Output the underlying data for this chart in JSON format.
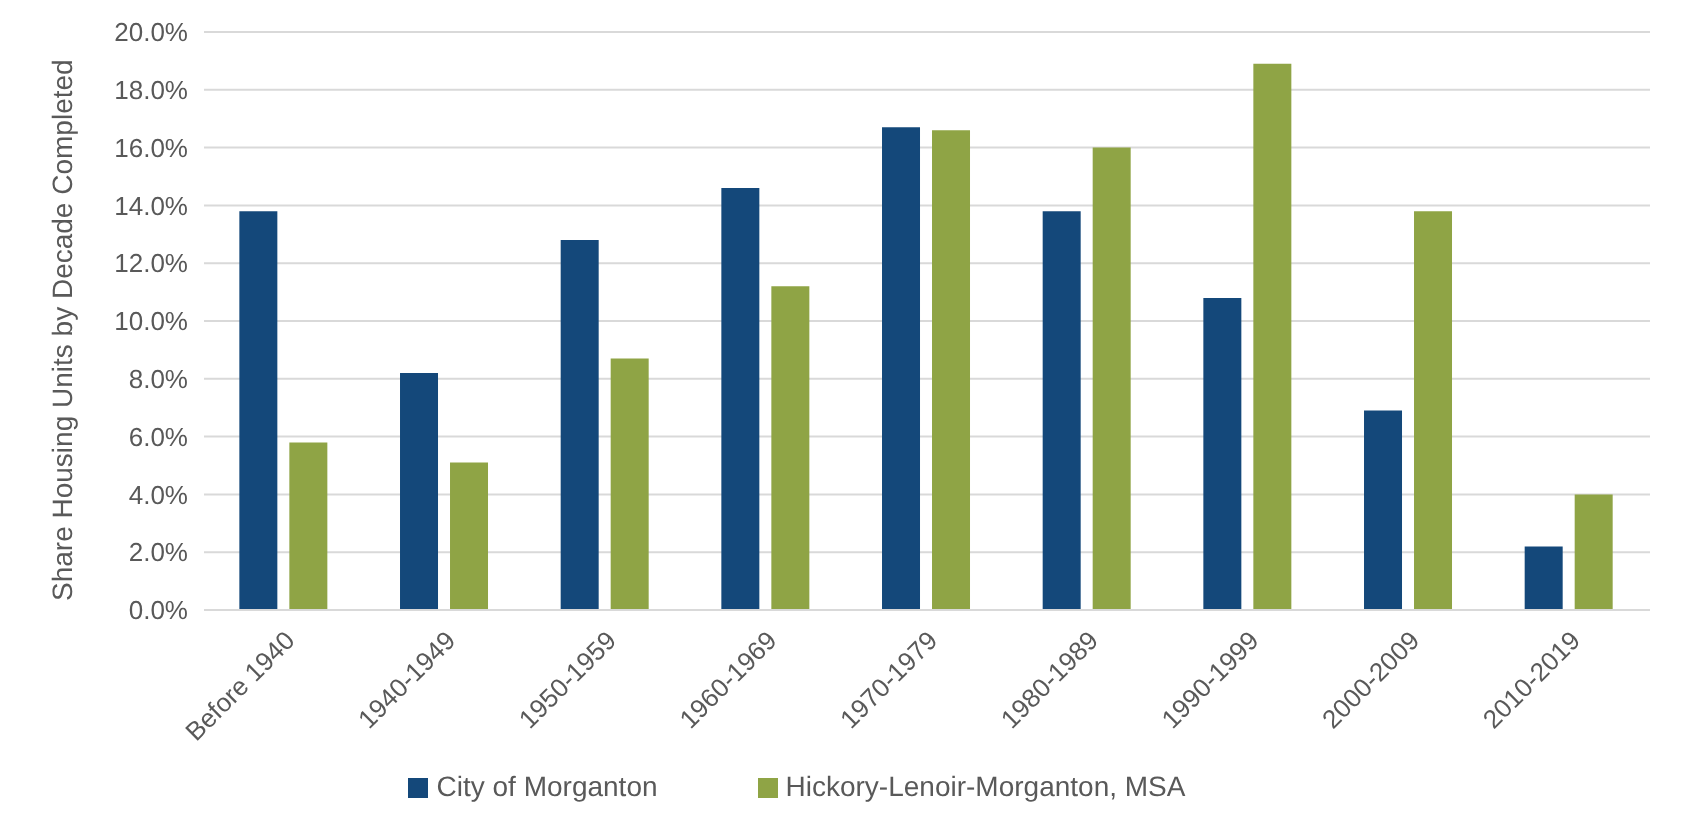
{
  "chart_data": {
    "type": "bar",
    "ylabel": "Share Housing Units by Decade Completed",
    "categories": [
      "Before 1940",
      "1940-1949",
      "1950-1959",
      "1960-1969",
      "1970-1979",
      "1980-1989",
      "1990-1999",
      "2000-2009",
      "2010-2019"
    ],
    "series": [
      {
        "name": "City of Morganton",
        "color": "#14487a",
        "values": [
          13.8,
          8.2,
          12.8,
          14.6,
          16.7,
          13.8,
          10.8,
          6.9,
          2.2
        ]
      },
      {
        "name": "Hickory-Lenoir-Morganton, MSA",
        "color": "#8fa445",
        "values": [
          5.8,
          5.1,
          8.7,
          11.2,
          16.6,
          16.0,
          18.9,
          13.8,
          4.0
        ]
      }
    ],
    "ylim": [
      0,
      20
    ],
    "yticks": [
      {
        "value": 0,
        "label": "0.0%"
      },
      {
        "value": 2,
        "label": "2.0%"
      },
      {
        "value": 4,
        "label": "4.0%"
      },
      {
        "value": 6,
        "label": "6.0%"
      },
      {
        "value": 8,
        "label": "8.0%"
      },
      {
        "value": 10,
        "label": "10.0%"
      },
      {
        "value": 12,
        "label": "12.0%"
      },
      {
        "value": 14,
        "label": "14.0%"
      },
      {
        "value": 16,
        "label": "16.0%"
      },
      {
        "value": 18,
        "label": "18.0%"
      },
      {
        "value": 20,
        "label": "20.0%"
      }
    ],
    "grid": "y",
    "legend": "bottom"
  }
}
